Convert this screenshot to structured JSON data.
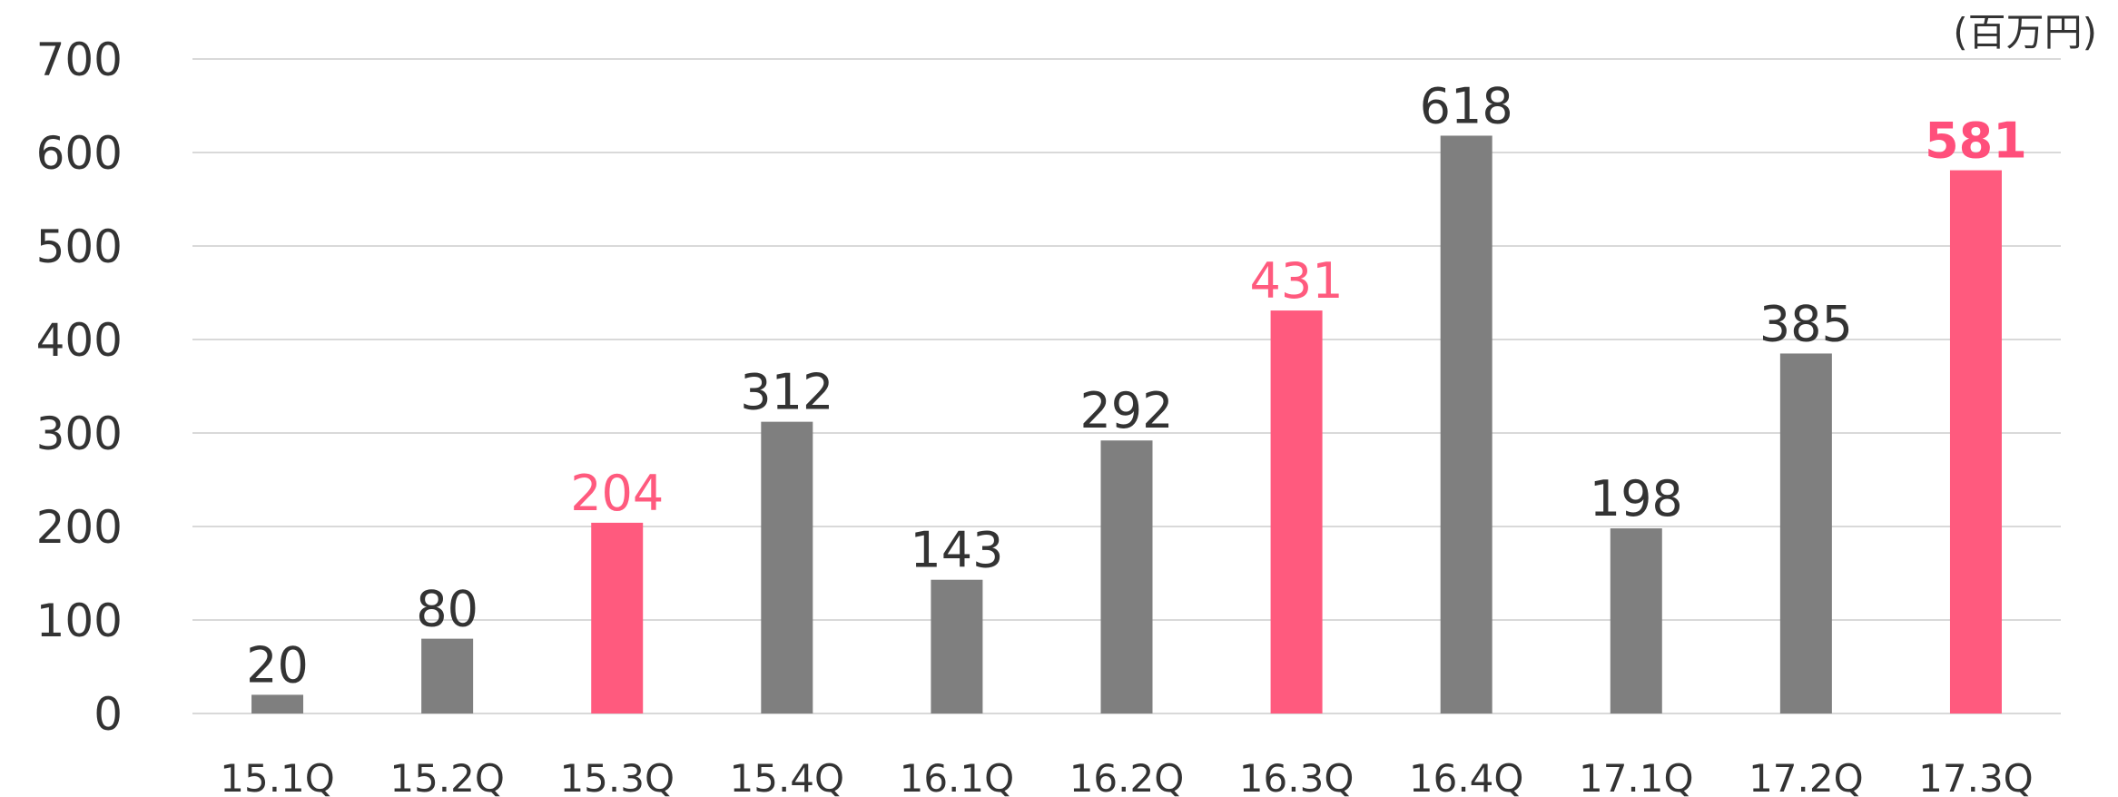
{
  "chart_data": {
    "type": "bar",
    "unit_label": "(百万円)",
    "categories": [
      "15.1Q",
      "15.2Q",
      "15.3Q",
      "15.4Q",
      "16.1Q",
      "16.2Q",
      "16.3Q",
      "16.4Q",
      "17.1Q",
      "17.2Q",
      "17.3Q"
    ],
    "values": [
      20,
      80,
      204,
      312,
      143,
      292,
      431,
      618,
      198,
      385,
      581
    ],
    "highlight_categories": [
      "15.3Q",
      "16.3Q",
      "17.3Q"
    ],
    "latest_category": "17.3Q",
    "ylim": [
      0,
      700
    ],
    "yticks": [
      0,
      100,
      200,
      300,
      400,
      500,
      600,
      700
    ],
    "grid": true,
    "legend": "none",
    "colors": {
      "default_bar": "#7f7f7f",
      "highlight_bar": "#ff5a7e",
      "gridline": "#d9d9d9",
      "text": "#333333",
      "highlight_text": "#ff5a7e"
    }
  }
}
